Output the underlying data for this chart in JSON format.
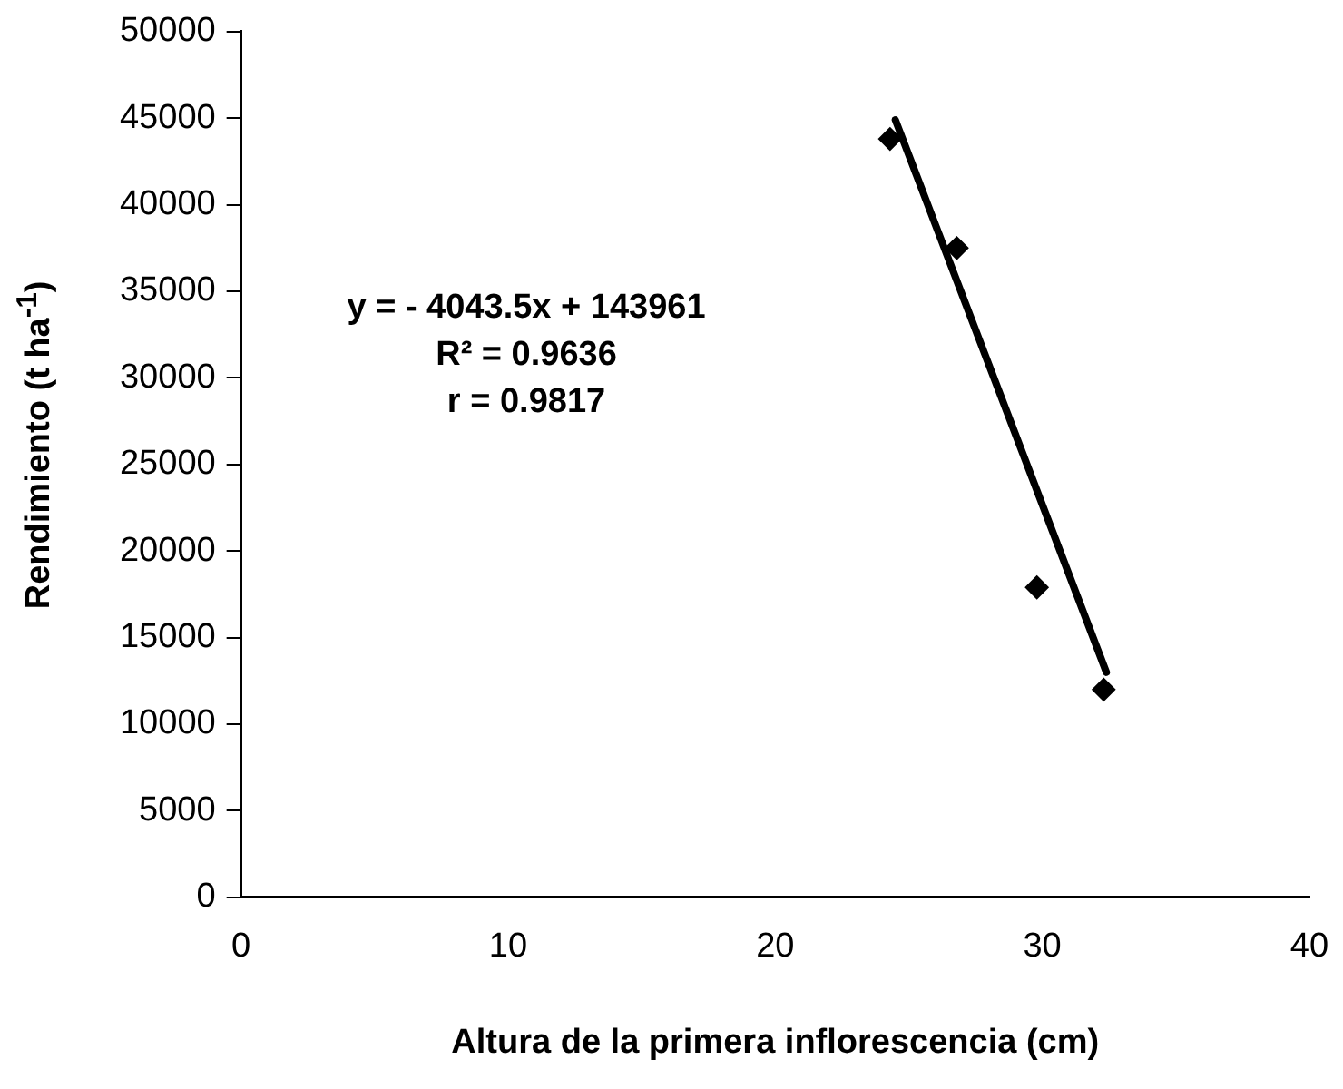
{
  "chart_data": {
    "type": "scatter",
    "xlabel": "Altura de la primera inflorescencia (cm)",
    "ylabel": "Rendimiento (t ha$^{-1}$)",
    "series": [
      {
        "color": "#000000",
        "marker": "diamond",
        "x": [
          24.3,
          26.8,
          29.8,
          32.3
        ],
        "values": [
          43800,
          37500,
          17900,
          12000
        ]
      },
      {
        "type": "line",
        "color": "#000000",
        "marker": "none",
        "line_style": "solid",
        "x": [
          24.5,
          32.4
        ],
        "values": [
          44900,
          13000
        ]
      }
    ],
    "xlim": [
      0,
      40
    ],
    "xticks": [
      0,
      10,
      20,
      30,
      40
    ],
    "ylim": [
      0,
      50000
    ],
    "yticks": [
      0,
      5000,
      10000,
      15000,
      20000,
      25000,
      30000,
      35000,
      40000,
      45000,
      50000
    ],
    "grid": false,
    "legend": false,
    "annotations": [
      "y = - 4043.5x + 143961",
      "R² = 0.9636",
      "r = 0.9817"
    ]
  }
}
